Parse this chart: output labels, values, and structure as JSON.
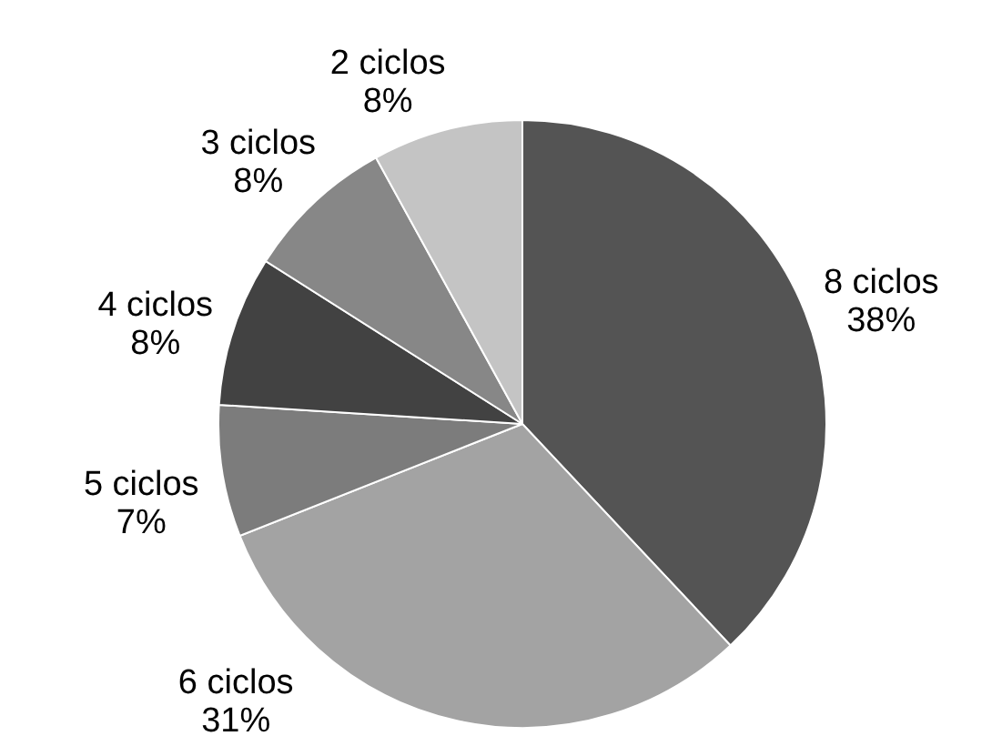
{
  "chart_data": {
    "type": "pie",
    "categories": [
      "8 ciclos",
      "6 ciclos",
      "5 ciclos",
      "4 ciclos",
      "3 ciclos",
      "2 ciclos"
    ],
    "values": [
      38,
      31,
      7,
      8,
      8,
      8
    ],
    "value_labels": [
      "38%",
      "31%",
      "7%",
      "8%",
      "8%",
      "8%"
    ],
    "colors": [
      "#545454",
      "#a3a3a3",
      "#7c7c7c",
      "#424242",
      "#878787",
      "#c4c4c4"
    ]
  }
}
